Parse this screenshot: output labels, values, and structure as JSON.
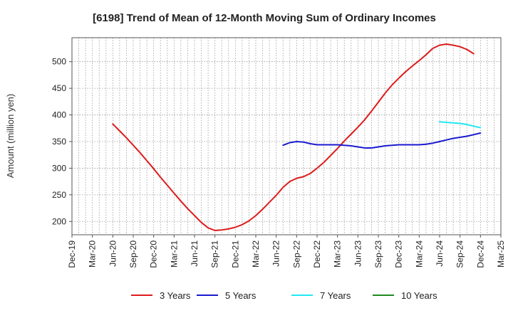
{
  "chart_data": {
    "type": "line",
    "title": "[6198]  Trend of Mean of 12-Month Moving Sum of Ordinary Incomes",
    "ylabel": "Amount (million yen)",
    "xlabel": "",
    "ylim": [
      175,
      545
    ],
    "yticks": [
      200,
      250,
      300,
      350,
      400,
      450,
      500
    ],
    "x_categories": [
      "Dec-19",
      "Mar-20",
      "Jun-20",
      "Sep-20",
      "Dec-20",
      "Mar-21",
      "Jun-21",
      "Sep-21",
      "Dec-21",
      "Mar-22",
      "Jun-22",
      "Sep-22",
      "Dec-22",
      "Mar-23",
      "Jun-23",
      "Sep-23",
      "Dec-23",
      "Mar-24",
      "Jun-24",
      "Sep-24",
      "Dec-24",
      "Mar-25"
    ],
    "grid": true,
    "legend_position": "bottom",
    "series": [
      {
        "name": "3 Years",
        "color": "#dd1c1c",
        "points": [
          [
            "Jun-20",
            383
          ],
          [
            "Jul-20",
            370
          ],
          [
            "Aug-20",
            357
          ],
          [
            "Sep-20",
            343
          ],
          [
            "Oct-20",
            329
          ],
          [
            "Nov-20",
            314
          ],
          [
            "Dec-20",
            299
          ],
          [
            "Jan-21",
            283
          ],
          [
            "Feb-21",
            268
          ],
          [
            "Mar-21",
            253
          ],
          [
            "Apr-21",
            238
          ],
          [
            "May-21",
            224
          ],
          [
            "Jun-21",
            211
          ],
          [
            "Jul-21",
            198
          ],
          [
            "Aug-21",
            188
          ],
          [
            "Sep-21",
            183
          ],
          [
            "Oct-21",
            184
          ],
          [
            "Nov-21",
            186
          ],
          [
            "Dec-21",
            189
          ],
          [
            "Jan-22",
            194
          ],
          [
            "Feb-22",
            201
          ],
          [
            "Mar-22",
            211
          ],
          [
            "Apr-22",
            223
          ],
          [
            "May-22",
            236
          ],
          [
            "Jun-22",
            249
          ],
          [
            "Jul-22",
            264
          ],
          [
            "Aug-22",
            275
          ],
          [
            "Sep-22",
            281
          ],
          [
            "Oct-22",
            284
          ],
          [
            "Nov-22",
            290
          ],
          [
            "Dec-22",
            300
          ],
          [
            "Jan-23",
            311
          ],
          [
            "Feb-23",
            324
          ],
          [
            "Mar-23",
            337
          ],
          [
            "Apr-23",
            351
          ],
          [
            "May-23",
            364
          ],
          [
            "Jun-23",
            377
          ],
          [
            "Jul-23",
            391
          ],
          [
            "Aug-23",
            407
          ],
          [
            "Sep-23",
            424
          ],
          [
            "Oct-23",
            441
          ],
          [
            "Nov-23",
            456
          ],
          [
            "Dec-23",
            469
          ],
          [
            "Jan-24",
            481
          ],
          [
            "Feb-24",
            492
          ],
          [
            "Mar-24",
            502
          ],
          [
            "Apr-24",
            513
          ],
          [
            "May-24",
            525
          ],
          [
            "Jun-24",
            531
          ],
          [
            "Jul-24",
            533
          ],
          [
            "Aug-24",
            531
          ],
          [
            "Sep-24",
            528
          ],
          [
            "Oct-24",
            523
          ],
          [
            "Nov-24",
            515
          ]
        ]
      },
      {
        "name": "5 Years",
        "color": "#1a1ad0",
        "points": [
          [
            "Jul-22",
            343
          ],
          [
            "Aug-22",
            348
          ],
          [
            "Sep-22",
            350
          ],
          [
            "Oct-22",
            349
          ],
          [
            "Nov-22",
            346
          ],
          [
            "Dec-22",
            344
          ],
          [
            "Jan-23",
            344
          ],
          [
            "Feb-23",
            344
          ],
          [
            "Mar-23",
            344
          ],
          [
            "Apr-23",
            343
          ],
          [
            "May-23",
            342
          ],
          [
            "Jun-23",
            340
          ],
          [
            "Jul-23",
            338
          ],
          [
            "Aug-23",
            338
          ],
          [
            "Sep-23",
            340
          ],
          [
            "Oct-23",
            342
          ],
          [
            "Nov-23",
            343
          ],
          [
            "Dec-23",
            344
          ],
          [
            "Jan-24",
            344
          ],
          [
            "Feb-24",
            344
          ],
          [
            "Mar-24",
            344
          ],
          [
            "Apr-24",
            345
          ],
          [
            "May-24",
            347
          ],
          [
            "Jun-24",
            350
          ],
          [
            "Jul-24",
            353
          ],
          [
            "Aug-24",
            356
          ],
          [
            "Sep-24",
            358
          ],
          [
            "Oct-24",
            360
          ],
          [
            "Nov-24",
            363
          ],
          [
            "Dec-24",
            366
          ]
        ]
      },
      {
        "name": "7 Years",
        "color": "#22e8f0",
        "points": [
          [
            "Jun-24",
            387
          ],
          [
            "Jul-24",
            386
          ],
          [
            "Aug-24",
            385
          ],
          [
            "Sep-24",
            384
          ],
          [
            "Oct-24",
            382
          ],
          [
            "Nov-24",
            379
          ],
          [
            "Dec-24",
            376
          ]
        ]
      },
      {
        "name": "10 Years",
        "color": "#1f8a1f",
        "points": []
      }
    ]
  }
}
